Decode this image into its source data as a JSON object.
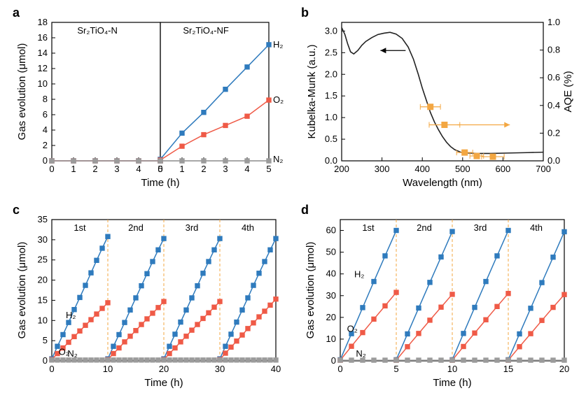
{
  "colors": {
    "H2": "#2f7bbd",
    "O2": "#ef5a47",
    "N2": "#9b9b9b",
    "AQE": "#f3a742",
    "KM": "#222222",
    "label_a_left": "#5aa3a0",
    "label_a_right": "#ef7b8a"
  },
  "panel_a": {
    "type": "line+marker",
    "label": "a",
    "xlabel": "Time (h)",
    "ylabel": "Gas evolution (μmol)",
    "left": {
      "title": "Sr₂TiO₄-N",
      "xlim": [
        0,
        5
      ],
      "xticks": [
        0,
        1,
        2,
        3,
        4,
        5
      ],
      "ylim": [
        0,
        18
      ],
      "yticks": [
        0,
        2,
        4,
        6,
        8,
        10,
        12,
        14,
        16,
        18
      ],
      "series": {
        "H2": [
          [
            0,
            0
          ],
          [
            1,
            0
          ],
          [
            2,
            0
          ],
          [
            3,
            0
          ],
          [
            4,
            0
          ],
          [
            5,
            0
          ]
        ],
        "O2": [
          [
            0,
            0
          ],
          [
            1,
            0
          ],
          [
            2,
            0
          ],
          [
            3,
            0
          ],
          [
            4,
            0
          ],
          [
            5,
            0
          ]
        ],
        "N2": [
          [
            0,
            0
          ],
          [
            1,
            0
          ],
          [
            2,
            0
          ],
          [
            3,
            0
          ],
          [
            4,
            0
          ],
          [
            5,
            0
          ]
        ]
      }
    },
    "right": {
      "title": "Sr₂TiO₄-NF",
      "xlim": [
        0,
        5
      ],
      "xticks": [
        0,
        1,
        2,
        3,
        4,
        5
      ],
      "ylim": [
        0,
        18
      ],
      "series": {
        "H2": [
          [
            0,
            0.2
          ],
          [
            1,
            3.6
          ],
          [
            2,
            6.3
          ],
          [
            3,
            9.3
          ],
          [
            4,
            12.2
          ],
          [
            5,
            15.1
          ]
        ],
        "O2": [
          [
            0,
            0.1
          ],
          [
            1,
            1.9
          ],
          [
            2,
            3.4
          ],
          [
            3,
            4.6
          ],
          [
            4,
            5.8
          ],
          [
            5,
            7.9
          ]
        ],
        "N2": [
          [
            0,
            0
          ],
          [
            1,
            0
          ],
          [
            2,
            0
          ],
          [
            3,
            0
          ],
          [
            4,
            0
          ],
          [
            5,
            0
          ]
        ]
      },
      "annot": {
        "H2": "H₂",
        "O2": "O₂",
        "N2": "N₂"
      }
    }
  },
  "panel_b": {
    "type": "dual-axis",
    "label": "b",
    "xlabel": "Wavelength (nm)",
    "ylabel_left": "Kubelka-Munk (a.u.)",
    "ylabel_right": "AQE (%)",
    "xlim": [
      200,
      700
    ],
    "xticks": [
      200,
      300,
      400,
      500,
      600,
      700
    ],
    "ylim_left": [
      0,
      3.2
    ],
    "yticks_left": [
      0.0,
      0.5,
      1.0,
      1.5,
      2.0,
      2.5,
      3.0
    ],
    "ylim_right": [
      0,
      1.0
    ],
    "yticks_right": [
      0.0,
      0.2,
      0.4,
      0.6,
      0.8,
      1.0
    ],
    "KM_curve": [
      [
        200,
        3.08
      ],
      [
        208,
        2.92
      ],
      [
        215,
        2.7
      ],
      [
        222,
        2.52
      ],
      [
        230,
        2.47
      ],
      [
        240,
        2.55
      ],
      [
        250,
        2.67
      ],
      [
        260,
        2.76
      ],
      [
        275,
        2.85
      ],
      [
        290,
        2.92
      ],
      [
        305,
        2.95
      ],
      [
        320,
        2.97
      ],
      [
        335,
        2.93
      ],
      [
        350,
        2.83
      ],
      [
        365,
        2.63
      ],
      [
        378,
        2.35
      ],
      [
        390,
        2.0
      ],
      [
        400,
        1.68
      ],
      [
        410,
        1.4
      ],
      [
        420,
        1.12
      ],
      [
        430,
        0.9
      ],
      [
        440,
        0.72
      ],
      [
        450,
        0.56
      ],
      [
        460,
        0.43
      ],
      [
        470,
        0.33
      ],
      [
        480,
        0.26
      ],
      [
        495,
        0.2
      ],
      [
        515,
        0.18
      ],
      [
        540,
        0.17
      ],
      [
        570,
        0.17
      ],
      [
        610,
        0.18
      ],
      [
        660,
        0.19
      ],
      [
        700,
        0.2
      ]
    ],
    "AQE_points": [
      {
        "x": 420,
        "y": 0.39,
        "xerr": 25
      },
      {
        "x": 455,
        "y": 0.26,
        "xerr": 38
      },
      {
        "x": 505,
        "y": 0.06,
        "xerr": 20
      },
      {
        "x": 535,
        "y": 0.035,
        "xerr": 17
      },
      {
        "x": 575,
        "y": 0.03,
        "xerr": 28
      }
    ],
    "arrows": {
      "left_at": [
        310,
        2.55
      ],
      "right_at": [
        565,
        0.26
      ]
    }
  },
  "panel_c": {
    "type": "line+marker cycles",
    "label": "c",
    "xlabel": "Time (h)",
    "ylabel": "Gas evolution (μmol)",
    "xlim": [
      0,
      40
    ],
    "xticks": [
      0,
      10,
      20,
      30,
      40
    ],
    "ylim": [
      0,
      35
    ],
    "yticks": [
      0,
      5,
      10,
      15,
      20,
      25,
      30,
      35
    ],
    "separators": [
      10,
      20,
      30
    ],
    "cycle_labels": [
      "1st",
      "2nd",
      "3rd",
      "4th"
    ],
    "series": {
      "H2": [
        [
          0,
          0.5
        ],
        [
          1,
          3.6
        ],
        [
          2,
          6.5
        ],
        [
          3,
          9.5
        ],
        [
          4,
          12.7
        ],
        [
          5,
          15.7
        ],
        [
          6,
          18.7
        ],
        [
          7,
          21.8
        ],
        [
          8,
          24.9
        ],
        [
          9,
          27.9
        ],
        [
          10,
          30.8
        ],
        [
          10,
          0.5
        ],
        [
          11,
          3.6
        ],
        [
          12,
          6.5
        ],
        [
          13,
          9.5
        ],
        [
          14,
          12.6
        ],
        [
          15,
          15.6
        ],
        [
          16,
          18.6
        ],
        [
          17,
          21.6
        ],
        [
          18,
          24.6
        ],
        [
          19,
          27.5
        ],
        [
          20,
          30.3
        ],
        [
          20,
          0.5
        ],
        [
          21,
          3.6
        ],
        [
          22,
          6.6
        ],
        [
          23,
          9.6
        ],
        [
          24,
          12.6
        ],
        [
          25,
          15.6
        ],
        [
          26,
          18.6
        ],
        [
          27,
          21.7
        ],
        [
          28,
          24.6
        ],
        [
          29,
          27.5
        ],
        [
          30,
          30.3
        ],
        [
          30,
          0.5
        ],
        [
          31,
          3.6
        ],
        [
          32,
          6.6
        ],
        [
          33,
          9.6
        ],
        [
          34,
          12.6
        ],
        [
          35,
          15.6
        ],
        [
          36,
          18.7
        ],
        [
          37,
          21.7
        ],
        [
          38,
          24.6
        ],
        [
          39,
          27.5
        ],
        [
          40,
          30.3
        ]
      ],
      "O2": [
        [
          0,
          0.3
        ],
        [
          1,
          1.8
        ],
        [
          2,
          3.2
        ],
        [
          3,
          4.6
        ],
        [
          4,
          6.0
        ],
        [
          5,
          7.4
        ],
        [
          6,
          8.8
        ],
        [
          7,
          10.2
        ],
        [
          8,
          11.6
        ],
        [
          9,
          13.0
        ],
        [
          10,
          14.4
        ],
        [
          10,
          0.3
        ],
        [
          11,
          1.8
        ],
        [
          12,
          3.2
        ],
        [
          13,
          4.7
        ],
        [
          14,
          6.1
        ],
        [
          15,
          7.5
        ],
        [
          16,
          9.0
        ],
        [
          17,
          10.4
        ],
        [
          18,
          11.8
        ],
        [
          19,
          13.2
        ],
        [
          20,
          14.7
        ],
        [
          20,
          0.3
        ],
        [
          21,
          1.8
        ],
        [
          22,
          3.2
        ],
        [
          23,
          4.7
        ],
        [
          24,
          6.1
        ],
        [
          25,
          7.6
        ],
        [
          26,
          9.0
        ],
        [
          27,
          10.5
        ],
        [
          28,
          11.9
        ],
        [
          29,
          13.3
        ],
        [
          30,
          14.7
        ],
        [
          30,
          0.3
        ],
        [
          31,
          1.9
        ],
        [
          32,
          3.4
        ],
        [
          33,
          4.9
        ],
        [
          34,
          6.4
        ],
        [
          35,
          8.0
        ],
        [
          36,
          9.4
        ],
        [
          37,
          10.9
        ],
        [
          38,
          12.3
        ],
        [
          39,
          13.8
        ],
        [
          40,
          15.3
        ]
      ],
      "N2": [
        [
          0,
          0.2
        ],
        [
          1,
          0.2
        ],
        [
          2,
          0.2
        ],
        [
          3,
          0.2
        ],
        [
          4,
          0.2
        ],
        [
          5,
          0.2
        ],
        [
          6,
          0.2
        ],
        [
          7,
          0.2
        ],
        [
          8,
          0.2
        ],
        [
          9,
          0.2
        ],
        [
          10,
          0.2
        ],
        [
          11,
          0.2
        ],
        [
          12,
          0.2
        ],
        [
          13,
          0.2
        ],
        [
          14,
          0.2
        ],
        [
          15,
          0.2
        ],
        [
          16,
          0.2
        ],
        [
          17,
          0.2
        ],
        [
          18,
          0.2
        ],
        [
          19,
          0.2
        ],
        [
          20,
          0.2
        ],
        [
          21,
          0.2
        ],
        [
          22,
          0.2
        ],
        [
          23,
          0.2
        ],
        [
          24,
          0.2
        ],
        [
          25,
          0.2
        ],
        [
          26,
          0.2
        ],
        [
          27,
          0.2
        ],
        [
          28,
          0.2
        ],
        [
          29,
          0.2
        ],
        [
          30,
          0.2
        ],
        [
          31,
          0.2
        ],
        [
          32,
          0.2
        ],
        [
          33,
          0.2
        ],
        [
          34,
          0.2
        ],
        [
          35,
          0.2
        ],
        [
          36,
          0.2
        ],
        [
          37,
          0.2
        ],
        [
          38,
          0.2
        ],
        [
          39,
          0.2
        ],
        [
          40,
          0.2
        ]
      ]
    },
    "annot": {
      "H2": "H₂",
      "O2": "O₂",
      "N2": "N₂"
    }
  },
  "panel_d": {
    "type": "line+marker cycles",
    "label": "d",
    "xlabel": "Time (h)",
    "ylabel": "Gas evolution (μmol)",
    "xlim": [
      0,
      20
    ],
    "xticks": [
      0,
      5,
      10,
      15,
      20
    ],
    "ylim": [
      0,
      65
    ],
    "yticks": [
      0,
      10,
      20,
      30,
      40,
      50,
      60
    ],
    "separators": [
      5,
      10,
      15
    ],
    "cycle_labels": [
      "1st",
      "2nd",
      "3rd",
      "4th"
    ],
    "series": {
      "H2": [
        [
          0,
          0.5
        ],
        [
          1,
          12.5
        ],
        [
          2,
          24.5
        ],
        [
          3,
          36.5
        ],
        [
          4,
          48.3
        ],
        [
          5,
          60.0
        ],
        [
          5,
          0.5
        ],
        [
          6,
          12.4
        ],
        [
          7,
          24.3
        ],
        [
          8,
          36.1
        ],
        [
          9,
          47.8
        ],
        [
          10,
          59.5
        ],
        [
          10,
          0.5
        ],
        [
          11,
          12.6
        ],
        [
          12,
          24.6
        ],
        [
          13,
          36.5
        ],
        [
          14,
          48.3
        ],
        [
          15,
          60.0
        ],
        [
          15,
          0.5
        ],
        [
          16,
          12.4
        ],
        [
          17,
          24.2
        ],
        [
          18,
          36.0
        ],
        [
          19,
          47.7
        ],
        [
          20,
          59.4
        ]
      ],
      "O2": [
        [
          0,
          0.3
        ],
        [
          1,
          6.7
        ],
        [
          2,
          13.0
        ],
        [
          3,
          19.2
        ],
        [
          4,
          25.3
        ],
        [
          5,
          31.5
        ],
        [
          5,
          0.3
        ],
        [
          6,
          6.5
        ],
        [
          7,
          12.6
        ],
        [
          8,
          18.7
        ],
        [
          9,
          24.7
        ],
        [
          10,
          30.6
        ],
        [
          10,
          0.3
        ],
        [
          11,
          6.6
        ],
        [
          12,
          12.8
        ],
        [
          13,
          18.9
        ],
        [
          14,
          25.0
        ],
        [
          15,
          31.0
        ],
        [
          15,
          0.3
        ],
        [
          16,
          6.5
        ],
        [
          17,
          12.5
        ],
        [
          18,
          18.6
        ],
        [
          19,
          24.6
        ],
        [
          20,
          30.5
        ]
      ],
      "N2": [
        [
          0,
          0.3
        ],
        [
          1,
          0.3
        ],
        [
          2,
          0.3
        ],
        [
          3,
          0.3
        ],
        [
          4,
          0.3
        ],
        [
          5,
          0.3
        ],
        [
          6,
          0.3
        ],
        [
          7,
          0.3
        ],
        [
          8,
          0.3
        ],
        [
          9,
          0.3
        ],
        [
          10,
          0.3
        ],
        [
          11,
          0.3
        ],
        [
          12,
          0.3
        ],
        [
          13,
          0.3
        ],
        [
          14,
          0.3
        ],
        [
          15,
          0.3
        ],
        [
          16,
          0.3
        ],
        [
          17,
          0.3
        ],
        [
          18,
          0.3
        ],
        [
          19,
          0.3
        ],
        [
          20,
          0.3
        ]
      ]
    },
    "annot": {
      "H2": "H₂",
      "O2": "O₂",
      "N2": "N₂"
    }
  }
}
